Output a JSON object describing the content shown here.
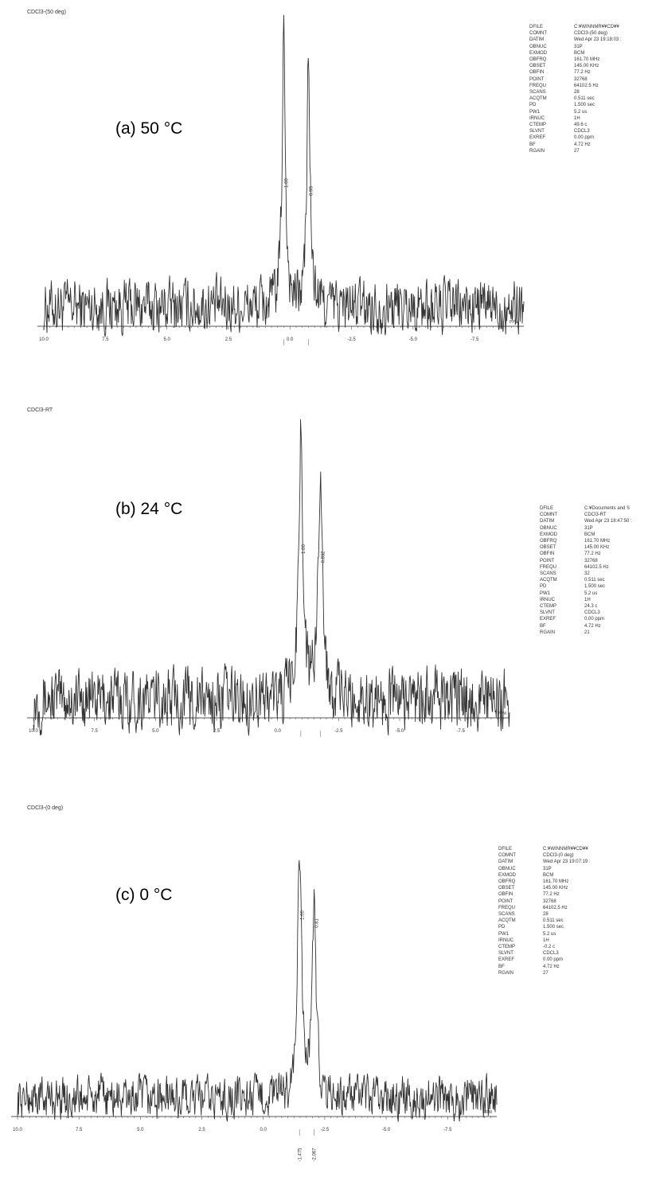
{
  "panels": [
    {
      "file_label": "CDCl3-(50 deg)",
      "temp_label": "(a) 50 °C",
      "params": [
        [
          "DFILE",
          "C:¥WINNMR¥¥CD¥¥"
        ],
        [
          "COMNT",
          "CDCl3-(50 deg)"
        ],
        [
          "DATIM",
          "Wed Apr 23 19:18:03 :"
        ],
        [
          "OBNUC",
          "31P"
        ],
        [
          "EXMOD",
          "BCM"
        ],
        [
          "OBFRQ",
          "161.70 MHz"
        ],
        [
          "OBSET",
          "145.00 KHz"
        ],
        [
          "OBFIN",
          "77.2 Hz"
        ],
        [
          "POINT",
          "32768"
        ],
        [
          "FREQU",
          "64102.5 Hz"
        ],
        [
          "SCANS",
          "28"
        ],
        [
          "ACQTM",
          "0.511 sec"
        ],
        [
          "PD",
          "1.500 sec"
        ],
        [
          "PW1",
          "5.2 us"
        ],
        [
          "IRNUC",
          "1H"
        ],
        [
          "CTEMP",
          "49.6 c"
        ],
        [
          "SLVNT",
          "CDCL3"
        ],
        [
          "EXREF",
          "0.00 ppm"
        ],
        [
          "BF",
          "4.72 Hz"
        ],
        [
          "RGAIN",
          "27"
        ]
      ]
    },
    {
      "file_label": "CDCl3-RT",
      "temp_label": "(b) 24 °C",
      "params": [
        [
          "DFILE",
          "C:¥Documents and S"
        ],
        [
          "COMNT",
          "CDCl3-RT"
        ],
        [
          "DATIM",
          "Wed Apr 23 18:47:50 :"
        ],
        [
          "OBNUC",
          "31P"
        ],
        [
          "EXMOD",
          "BCM"
        ],
        [
          "OBFRQ",
          "161.70 MHz"
        ],
        [
          "OBSET",
          "145.00 KHz"
        ],
        [
          "OBFIN",
          "77.2 Hz"
        ],
        [
          "POINT",
          "32768"
        ],
        [
          "FREQU",
          "64102.5 Hz"
        ],
        [
          "SCANS",
          "32"
        ],
        [
          "ACQTM",
          "0.511 sec"
        ],
        [
          "PD",
          "1.500 sec"
        ],
        [
          "PW1",
          "5.2 us"
        ],
        [
          "IRNUC",
          "1H"
        ],
        [
          "CTEMP",
          "24.3 c"
        ],
        [
          "SLVNT",
          "CDCL3"
        ],
        [
          "EXREF",
          "0.00 ppm"
        ],
        [
          "BF",
          "4.72 Hz"
        ],
        [
          "RGAIN",
          "21"
        ]
      ]
    },
    {
      "file_label": "CDCl3-(0 deg)",
      "temp_label": "(c) 0 °C",
      "params": [
        [
          "DFILE",
          "C:¥WINNMR¥¥CD¥¥"
        ],
        [
          "COMNT",
          "CDCl3-(0 deg)"
        ],
        [
          "DATIM",
          "Wed Apr 23 19:07:19 :"
        ],
        [
          "OBNUC",
          "31P"
        ],
        [
          "EXMOD",
          "BCM"
        ],
        [
          "OBFRQ",
          "161.70 MHz"
        ],
        [
          "OBSET",
          "145.00 KHz"
        ],
        [
          "OBFIN",
          "77.2 Hz"
        ],
        [
          "POINT",
          "32768"
        ],
        [
          "FREQU",
          "64102.5 Hz"
        ],
        [
          "SCANS",
          "28"
        ],
        [
          "ACQTM",
          "0.511 sec"
        ],
        [
          "PD",
          "1.500 sec"
        ],
        [
          "PW1",
          "5.2 us"
        ],
        [
          "IRNUC",
          "1H"
        ],
        [
          "CTEMP",
          "-0.2 c"
        ],
        [
          "SLVNT",
          "CDCL3"
        ],
        [
          "EXREF",
          "0.00 ppm"
        ],
        [
          "BF",
          "4.72 Hz"
        ],
        [
          "RGAIN",
          "27"
        ]
      ]
    }
  ],
  "chart_data": [
    {
      "type": "line",
      "title": "CDCl3-(50 deg)",
      "xlabel": "PPM",
      "xlim": [
        10.0,
        -9.5
      ],
      "x_reversed": true,
      "x_ticks": [
        "10.0",
        "7.5",
        "5.0",
        "2.5",
        "0.0",
        "-2.5",
        "-5.0",
        "-7.5"
      ],
      "peaks": [
        {
          "ppm": 0.25,
          "height": 1.0,
          "integral": "1.00"
        },
        {
          "ppm": -0.75,
          "height": 0.88,
          "integral": "0.98"
        }
      ],
      "peak_width": 0.08,
      "noise_level": 0.09,
      "baseline_wiggles": 300
    },
    {
      "type": "line",
      "title": "CDCl3-RT",
      "xlabel": "PPM",
      "xlim": [
        10.0,
        -9.5
      ],
      "x_reversed": true,
      "x_ticks": [
        "10.0",
        "7.5",
        "5.0",
        "2.5",
        "0.0",
        "-2.5",
        "-5.0",
        "-7.5"
      ],
      "peaks": [
        {
          "ppm": -0.95,
          "height": 1.0,
          "integral": "1.00"
        },
        {
          "ppm": -1.75,
          "height": 0.88,
          "integral": "0.832"
        }
      ],
      "peak_width": 0.1,
      "noise_level": 0.1,
      "baseline_wiggles": 300
    },
    {
      "type": "line",
      "title": "CDCl3-(0 deg)",
      "xlabel": "PPM",
      "xlim": [
        10.0,
        -9.5
      ],
      "x_reversed": true,
      "x_ticks": [
        "10.0",
        "7.5",
        "5.0",
        "2.5",
        "0.0",
        "-2.5",
        "-5.0",
        "-7.5"
      ],
      "peaks": [
        {
          "ppm": -1.475,
          "height": 1.0,
          "integral": "1.00"
        },
        {
          "ppm": -2.067,
          "height": 0.82,
          "integral": "0.81"
        }
      ],
      "peak_width": 0.1,
      "noise_level": 0.08,
      "baseline_wiggles": 300,
      "peak_ppm_labels": [
        "-1.475",
        "-2.067"
      ]
    }
  ]
}
